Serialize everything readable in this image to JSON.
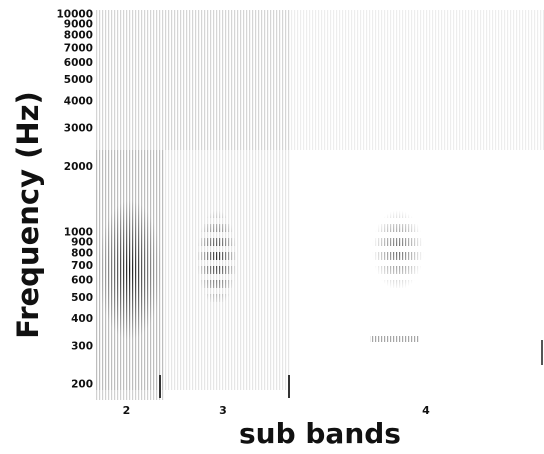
{
  "chart_data": {
    "type": "spectrogram",
    "y_label": "Frequency (Hz)",
    "x_label": "sub bands",
    "categories": [
      "2",
      "3",
      "4"
    ],
    "log_scale": true,
    "grid": false,
    "ylim": [
      170,
      10500
    ],
    "yticks": [
      200,
      300,
      400,
      500,
      600,
      700,
      800,
      900,
      1000,
      2000,
      3000,
      4000,
      5000,
      6000,
      7000,
      8000,
      9000,
      10000
    ]
  }
}
